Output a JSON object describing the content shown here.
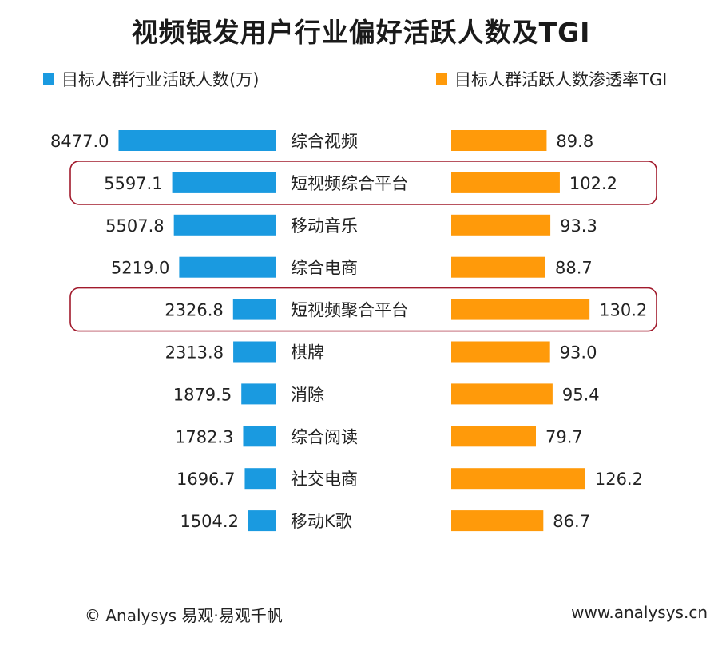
{
  "chart_data": {
    "type": "bar",
    "title": "视频银发用户行业偏好活跃人数及TGI",
    "categories": [
      "综合视频",
      "短视频综合平台",
      "移动音乐",
      "综合电商",
      "短视频聚合平台",
      "棋牌",
      "消除",
      "综合阅读",
      "社交电商",
      "移动K歌"
    ],
    "series": [
      {
        "name": "目标人群行业活跃人数(万)",
        "values": [
          8477.0,
          5597.1,
          5507.8,
          5219.0,
          2326.8,
          2313.8,
          1879.5,
          1782.3,
          1696.7,
          1504.2
        ],
        "labels": [
          "8477.0",
          "5597.1",
          "5507.8",
          "5219.0",
          "2326.8",
          "2313.8",
          "1879.5",
          "1782.3",
          "1696.7",
          "1504.2"
        ],
        "color": "#1a9ae0"
      },
      {
        "name": "目标人群活跃人数渗透率TGI",
        "values": [
          89.8,
          102.2,
          93.3,
          88.7,
          130.2,
          93.0,
          95.4,
          79.7,
          126.2,
          86.7
        ],
        "labels": [
          "89.8",
          "102.2",
          "93.3",
          "88.7",
          "130.2",
          "93.0",
          "95.4",
          "79.7",
          "126.2",
          "86.7"
        ],
        "color": "#ff9a0a"
      }
    ],
    "highlighted": [
      "短视频综合平台",
      "短视频聚合平台"
    ],
    "highlight_color": "#a11a2c",
    "legend_position": "top"
  },
  "footer": {
    "source": "© Analysys 易观·易观千帆",
    "url": "www.analysys.cn"
  }
}
